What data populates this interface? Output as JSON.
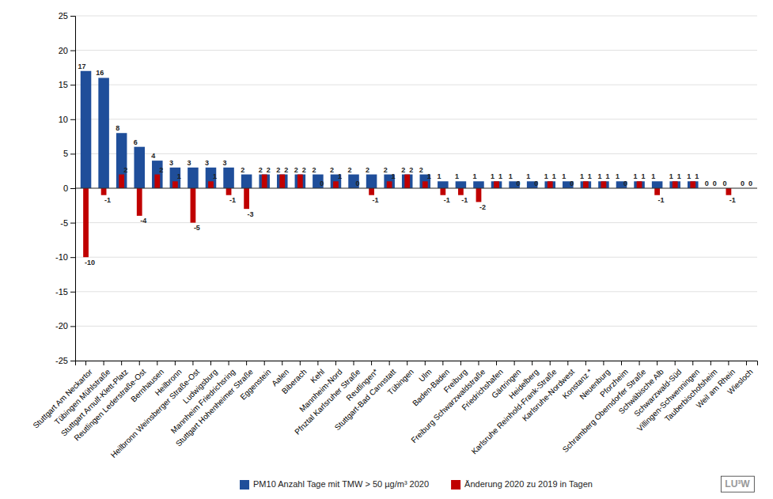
{
  "chart_data": {
    "type": "bar",
    "categories": [
      "Stuttgart Am Neckartor",
      "Tübingen Mühlstraße",
      "Stuttgart Arnulf-Klett-Platz",
      "Reutlingen Lederstraße-Ost",
      "Bernhausen",
      "Heilbronn",
      "Heilbronn Weinsberger Straße-Ost",
      "Ludwigsburg",
      "Mannheim Friedrichsring",
      "Stuttgart Hohenheimer Straße",
      "Eggenstein",
      "Aalen",
      "Biberach",
      "Kehl",
      "Mannheim-Nord",
      "Pfnztal Karlsruher Straße",
      "Reutlingen*",
      "Stuttgart-Bad Cannstatt",
      "Tübingen",
      "Ulm",
      "Baden-Baden",
      "Freiburg",
      "Freiburg Schwarzwaldstraße",
      "Friedrichshafen",
      "Gärtringen",
      "Heidelberg",
      "Karlsruhe Reinhold-Frank-Straße",
      "Karlsruhe-Nordwest",
      "Konstanz *",
      "Neuenburg",
      "Pforzheim",
      "Schramberg Oberndorfer Straße",
      "Schwäbische Alb",
      "Schwarzwald-Süd",
      "Villingen-Schwenningen",
      "Tauberbischofsheim",
      "Weil am Rhein",
      "Wiesloch"
    ],
    "series": [
      {
        "name": "PM10 Anzahl Tage mit TMW > 50 µg/m³ 2020",
        "color": "#1F4E9A",
        "values": [
          17,
          16,
          8,
          6,
          4,
          3,
          3,
          3,
          3,
          2,
          2,
          2,
          2,
          2,
          2,
          2,
          2,
          2,
          2,
          2,
          1,
          1,
          1,
          1,
          1,
          1,
          1,
          1,
          1,
          1,
          1,
          1,
          1,
          1,
          1,
          0,
          0,
          0
        ]
      },
      {
        "name": "Änderung 2020 zu 2019 in Tagen",
        "color": "#C00000",
        "values": [
          -10,
          -1,
          2,
          -4,
          2,
          1,
          -5,
          1,
          -1,
          -3,
          2,
          2,
          2,
          0,
          1,
          0,
          -1,
          1,
          2,
          1,
          -1,
          -1,
          -2,
          1,
          0,
          0,
          1,
          0,
          1,
          1,
          0,
          1,
          -1,
          1,
          1,
          0,
          -1,
          0
        ]
      }
    ],
    "ylim": [
      -25,
      25
    ],
    "yticks": [
      -25,
      -20,
      -15,
      -10,
      -5,
      0,
      5,
      10,
      15,
      20,
      25
    ],
    "grid": true,
    "data_labels": true,
    "legend": "bottom",
    "annotations": [
      "LU³W"
    ]
  }
}
